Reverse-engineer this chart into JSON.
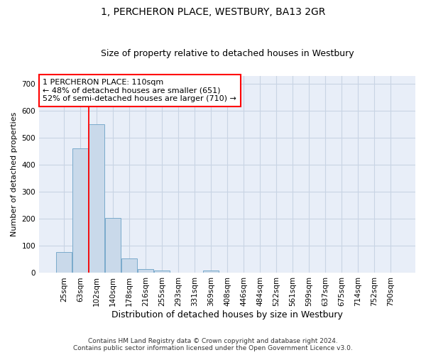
{
  "title": "1, PERCHERON PLACE, WESTBURY, BA13 2GR",
  "subtitle": "Size of property relative to detached houses in Westbury",
  "xlabel": "Distribution of detached houses by size in Westbury",
  "ylabel": "Number of detached properties",
  "footer_line1": "Contains HM Land Registry data © Crown copyright and database right 2024.",
  "footer_line2": "Contains public sector information licensed under the Open Government Licence v3.0.",
  "bar_labels": [
    "25sqm",
    "63sqm",
    "102sqm",
    "140sqm",
    "178sqm",
    "216sqm",
    "255sqm",
    "293sqm",
    "331sqm",
    "369sqm",
    "408sqm",
    "446sqm",
    "484sqm",
    "522sqm",
    "561sqm",
    "599sqm",
    "637sqm",
    "675sqm",
    "714sqm",
    "752sqm",
    "790sqm"
  ],
  "bar_values": [
    78,
    462,
    551,
    204,
    55,
    14,
    8,
    0,
    0,
    8,
    0,
    0,
    0,
    0,
    0,
    0,
    0,
    0,
    0,
    0,
    0
  ],
  "bar_color": "#c9d9ea",
  "bar_edge_color": "#7aaacb",
  "grid_color": "#c8d4e4",
  "background_color": "#e8eef8",
  "red_line_bar_index": 2,
  "annotation_text_line1": "1 PERCHERON PLACE: 110sqm",
  "annotation_text_line2": "← 48% of detached houses are smaller (651)",
  "annotation_text_line3": "52% of semi-detached houses are larger (710) →",
  "ylim": [
    0,
    730
  ],
  "yticks": [
    0,
    100,
    200,
    300,
    400,
    500,
    600,
    700
  ],
  "title_fontsize": 10,
  "subtitle_fontsize": 9,
  "ylabel_fontsize": 8,
  "xlabel_fontsize": 9,
  "tick_fontsize": 7.5,
  "footer_fontsize": 6.5
}
